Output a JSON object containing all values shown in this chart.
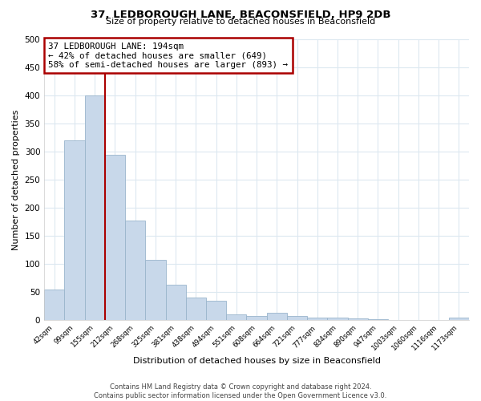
{
  "title": "37, LEDBOROUGH LANE, BEACONSFIELD, HP9 2DB",
  "subtitle": "Size of property relative to detached houses in Beaconsfield",
  "xlabel": "Distribution of detached houses by size in Beaconsfield",
  "ylabel": "Number of detached properties",
  "categories": [
    "42sqm",
    "99sqm",
    "155sqm",
    "212sqm",
    "268sqm",
    "325sqm",
    "381sqm",
    "438sqm",
    "494sqm",
    "551sqm",
    "608sqm",
    "664sqm",
    "721sqm",
    "777sqm",
    "834sqm",
    "890sqm",
    "947sqm",
    "1003sqm",
    "1060sqm",
    "1116sqm",
    "1173sqm"
  ],
  "values": [
    55,
    320,
    400,
    295,
    178,
    107,
    63,
    40,
    35,
    10,
    8,
    13,
    7,
    5,
    4,
    3,
    2,
    1,
    0.5,
    0.3,
    5
  ],
  "bar_color": "#c8d8ea",
  "bar_edge_color": "#9ab5cc",
  "vline_x": 2.5,
  "vline_color": "#aa0000",
  "annotation_text": "37 LEDBOROUGH LANE: 194sqm\n← 42% of detached houses are smaller (649)\n58% of semi-detached houses are larger (893) →",
  "annotation_box_edge": "#aa0000",
  "footer_line1": "Contains HM Land Registry data © Crown copyright and database right 2024.",
  "footer_line2": "Contains public sector information licensed under the Open Government Licence v3.0.",
  "ylim": [
    0,
    500
  ],
  "yticks": [
    0,
    50,
    100,
    150,
    200,
    250,
    300,
    350,
    400,
    450,
    500
  ],
  "background_color": "#ffffff",
  "grid_color": "#dce8f0",
  "title_fontsize": 9.5,
  "subtitle_fontsize": 8,
  "annotation_fontsize": 7.8,
  "footer_fontsize": 6
}
